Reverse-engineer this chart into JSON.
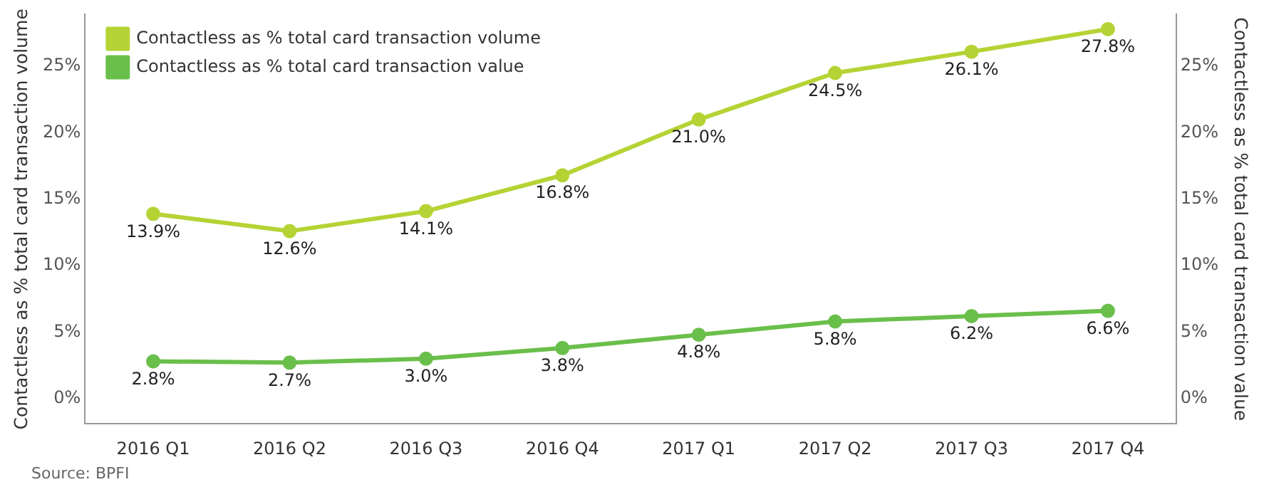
{
  "chart_data": {
    "type": "line",
    "ylabel": "Contactless as % total card transaction volume",
    "y2label": "Contactless as % total card transaction value",
    "categories": [
      "2016 Q1",
      "2016 Q2",
      "2016 Q3",
      "2016 Q4",
      "2017 Q1",
      "2017 Q2",
      "2017 Q3",
      "2017 Q4"
    ],
    "series": [
      {
        "name": "Contactless as % total card transaction volume",
        "color": "#b5d334",
        "values": [
          13.9,
          12.6,
          14.1,
          16.8,
          21.0,
          24.5,
          26.1,
          27.8
        ],
        "value_labels": [
          "13.9%",
          "12.6%",
          "14.1%",
          "16.8%",
          "21.0%",
          "24.5%",
          "26.1%",
          "27.8%"
        ]
      },
      {
        "name": "Contactless as % total card transaction value",
        "color": "#6abf4b",
        "values": [
          2.8,
          2.7,
          3.0,
          3.8,
          4.8,
          5.8,
          6.2,
          6.6
        ],
        "value_labels": [
          "2.8%",
          "2.7%",
          "3.0%",
          "3.8%",
          "4.8%",
          "5.8%",
          "6.2%",
          "6.6%"
        ]
      }
    ],
    "ylim": [
      -1.9,
      28.9
    ],
    "yticks": [
      {
        "value": 0,
        "label": "0%"
      },
      {
        "value": 5,
        "label": "5%"
      },
      {
        "value": 10,
        "label": "10%"
      },
      {
        "value": 15,
        "label": "15%"
      },
      {
        "value": 20,
        "label": "20%"
      },
      {
        "value": 25,
        "label": "25%"
      }
    ],
    "y2lim": [
      -1.9,
      28.9
    ],
    "y2ticks": [
      {
        "value": 0,
        "label": "0%"
      },
      {
        "value": 5,
        "label": "5%"
      },
      {
        "value": 10,
        "label": "10%"
      },
      {
        "value": 15,
        "label": "15%"
      },
      {
        "value": 20,
        "label": "20%"
      },
      {
        "value": 25,
        "label": "25%"
      }
    ],
    "marker": "circle",
    "line_style": "solid",
    "grid": false,
    "legend": "top left",
    "annotations": [
      "Source: BPFI"
    ]
  }
}
